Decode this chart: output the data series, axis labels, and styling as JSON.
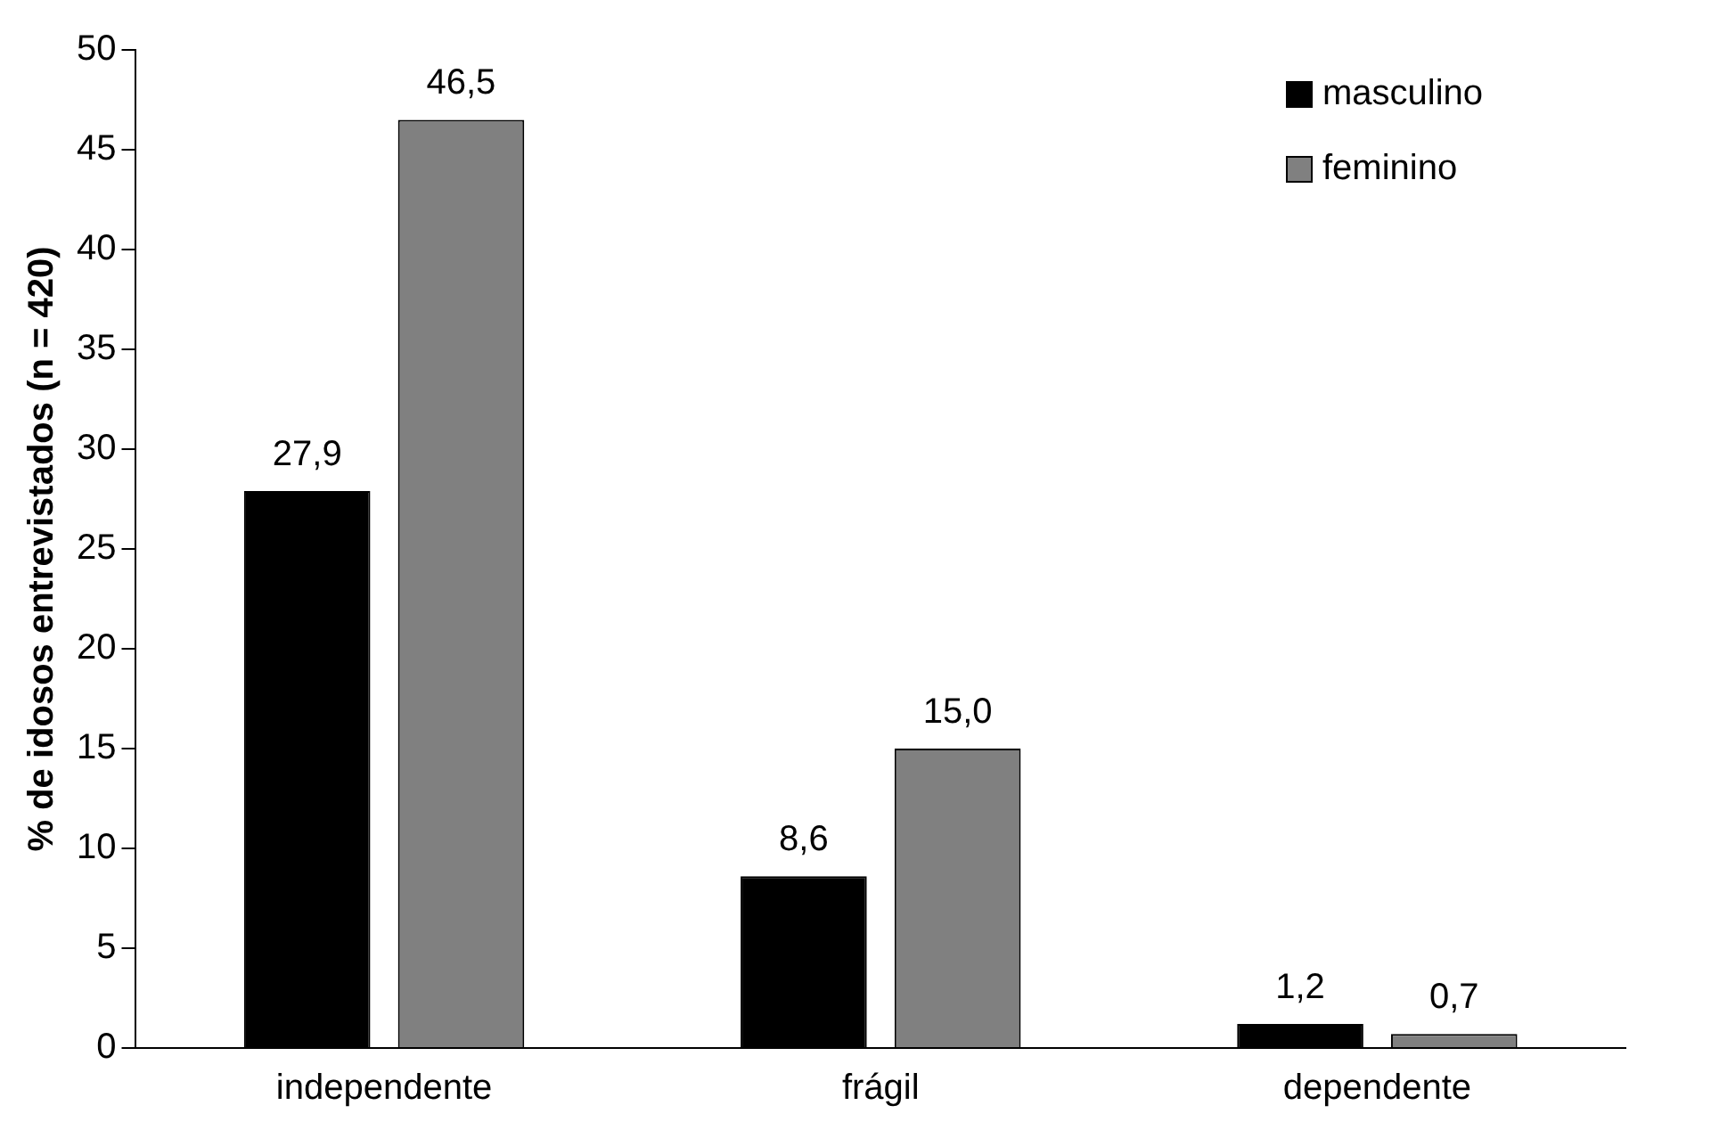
{
  "chart_data": {
    "type": "bar",
    "ylabel": "% de idosos entrevistados (n = 420)",
    "categories": [
      "independente",
      "frágil",
      "dependente"
    ],
    "series": [
      {
        "name": "masculino",
        "color": "#000000",
        "values": [
          27.9,
          8.6,
          1.2
        ],
        "value_labels": [
          "27,9",
          "8,6",
          "1,2"
        ]
      },
      {
        "name": "feminino",
        "color": "#808080",
        "values": [
          46.5,
          15.0,
          0.7
        ],
        "value_labels": [
          "46,5",
          "15,0",
          "0,7"
        ]
      }
    ],
    "ylim": [
      0,
      50
    ],
    "yticks": [
      0,
      5,
      10,
      15,
      20,
      25,
      30,
      35,
      40,
      45,
      50
    ],
    "grid": false,
    "legend": "top right"
  }
}
